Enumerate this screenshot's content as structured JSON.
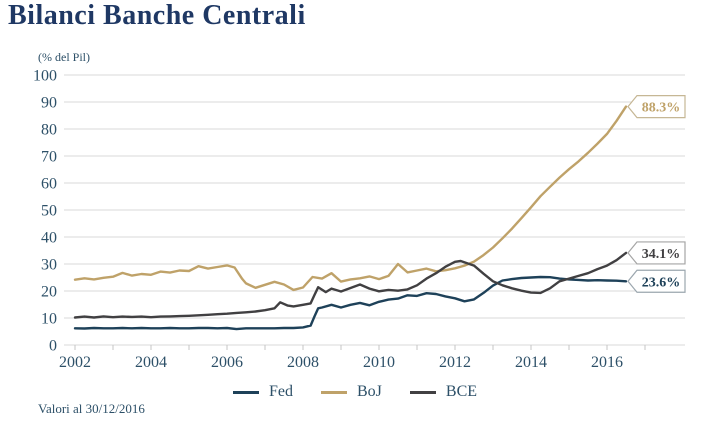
{
  "colors": {
    "background": "#ffffff",
    "title": "#1f3864",
    "axis_text": "#2d5068",
    "gridline": "#d9d9d9",
    "tick": "#c4c4c4",
    "fed": "#1e4159",
    "boj": "#bfa269",
    "bce": "#414042"
  },
  "header": {
    "title": "Bilanci Banche Centrali"
  },
  "chart_data": {
    "type": "line",
    "title": "Bilanci Banche Centrali",
    "unit_label": "(% del Pil)",
    "footnote": "Valori al 30/12/2016",
    "grid": "horizontal-only",
    "legend_position": "bottom-center",
    "x_axis": {
      "tick_labels": [
        2002,
        2004,
        2006,
        2008,
        2010,
        2012,
        2014,
        2016
      ],
      "minor_tick_years": [
        2002,
        2003,
        2004,
        2005,
        2006,
        2007,
        2008,
        2009,
        2010,
        2011,
        2012,
        2013,
        2014,
        2015,
        2016,
        2017
      ],
      "range": [
        2002,
        2016.5
      ]
    },
    "y_axis": {
      "ticks": [
        0,
        10,
        20,
        30,
        40,
        50,
        60,
        70,
        80,
        90,
        100
      ],
      "range": [
        0,
        100
      ]
    },
    "series": [
      {
        "name": "Fed",
        "color_key": "fed",
        "end_label": "23.6%",
        "callout_border": "#9ba6ae",
        "points": [
          [
            2002.0,
            6.2
          ],
          [
            2002.25,
            6.1
          ],
          [
            2002.5,
            6.3
          ],
          [
            2002.75,
            6.2
          ],
          [
            2003.0,
            6.2
          ],
          [
            2003.25,
            6.3
          ],
          [
            2003.5,
            6.2
          ],
          [
            2003.75,
            6.3
          ],
          [
            2004.0,
            6.2
          ],
          [
            2004.25,
            6.2
          ],
          [
            2004.5,
            6.3
          ],
          [
            2004.75,
            6.2
          ],
          [
            2005.0,
            6.2
          ],
          [
            2005.25,
            6.3
          ],
          [
            2005.5,
            6.3
          ],
          [
            2005.75,
            6.2
          ],
          [
            2006.0,
            6.3
          ],
          [
            2006.25,
            5.9
          ],
          [
            2006.5,
            6.2
          ],
          [
            2006.75,
            6.2
          ],
          [
            2007.0,
            6.2
          ],
          [
            2007.25,
            6.2
          ],
          [
            2007.5,
            6.3
          ],
          [
            2007.75,
            6.3
          ],
          [
            2008.0,
            6.5
          ],
          [
            2008.2,
            7.2
          ],
          [
            2008.3,
            10.5
          ],
          [
            2008.4,
            13.6
          ],
          [
            2008.5,
            13.9
          ],
          [
            2008.75,
            14.9
          ],
          [
            2009.0,
            13.9
          ],
          [
            2009.25,
            14.9
          ],
          [
            2009.5,
            15.6
          ],
          [
            2009.75,
            14.7
          ],
          [
            2010.0,
            16.0
          ],
          [
            2010.25,
            16.8
          ],
          [
            2010.5,
            17.2
          ],
          [
            2010.75,
            18.4
          ],
          [
            2011.0,
            18.2
          ],
          [
            2011.25,
            19.2
          ],
          [
            2011.5,
            18.9
          ],
          [
            2011.75,
            18.0
          ],
          [
            2012.0,
            17.3
          ],
          [
            2012.25,
            16.2
          ],
          [
            2012.5,
            16.9
          ],
          [
            2012.75,
            19.3
          ],
          [
            2013.0,
            22.0
          ],
          [
            2013.25,
            23.9
          ],
          [
            2013.5,
            24.4
          ],
          [
            2013.75,
            24.8
          ],
          [
            2014.0,
            25.0
          ],
          [
            2014.25,
            25.2
          ],
          [
            2014.5,
            25.1
          ],
          [
            2014.75,
            24.6
          ],
          [
            2015.0,
            24.3
          ],
          [
            2015.25,
            24.1
          ],
          [
            2015.5,
            23.9
          ],
          [
            2015.75,
            24.0
          ],
          [
            2016.0,
            23.9
          ],
          [
            2016.25,
            23.8
          ],
          [
            2016.5,
            23.6
          ]
        ]
      },
      {
        "name": "BoJ",
        "color_key": "boj",
        "end_label": "88.3%",
        "callout_border": "#c6b795",
        "points": [
          [
            2002.0,
            24.2
          ],
          [
            2002.25,
            24.7
          ],
          [
            2002.5,
            24.3
          ],
          [
            2002.75,
            24.9
          ],
          [
            2003.0,
            25.3
          ],
          [
            2003.25,
            26.7
          ],
          [
            2003.5,
            25.7
          ],
          [
            2003.75,
            26.3
          ],
          [
            2004.0,
            26.0
          ],
          [
            2004.25,
            27.2
          ],
          [
            2004.5,
            26.8
          ],
          [
            2004.75,
            27.6
          ],
          [
            2005.0,
            27.4
          ],
          [
            2005.25,
            29.2
          ],
          [
            2005.5,
            28.3
          ],
          [
            2005.75,
            28.9
          ],
          [
            2006.0,
            29.5
          ],
          [
            2006.2,
            28.7
          ],
          [
            2006.4,
            24.5
          ],
          [
            2006.5,
            22.8
          ],
          [
            2006.75,
            21.2
          ],
          [
            2007.0,
            22.3
          ],
          [
            2007.25,
            23.4
          ],
          [
            2007.5,
            22.4
          ],
          [
            2007.75,
            20.4
          ],
          [
            2008.0,
            21.3
          ],
          [
            2008.25,
            25.2
          ],
          [
            2008.5,
            24.6
          ],
          [
            2008.75,
            26.6
          ],
          [
            2009.0,
            23.5
          ],
          [
            2009.25,
            24.3
          ],
          [
            2009.5,
            24.7
          ],
          [
            2009.75,
            25.4
          ],
          [
            2010.0,
            24.4
          ],
          [
            2010.25,
            25.6
          ],
          [
            2010.5,
            30.0
          ],
          [
            2010.75,
            26.9
          ],
          [
            2011.0,
            27.6
          ],
          [
            2011.25,
            28.3
          ],
          [
            2011.5,
            27.3
          ],
          [
            2011.75,
            27.7
          ],
          [
            2012.0,
            28.4
          ],
          [
            2012.25,
            29.4
          ],
          [
            2012.5,
            30.9
          ],
          [
            2012.75,
            33.3
          ],
          [
            2013.0,
            36.1
          ],
          [
            2013.25,
            39.5
          ],
          [
            2013.5,
            43.1
          ],
          [
            2013.75,
            47.0
          ],
          [
            2014.0,
            51.0
          ],
          [
            2014.25,
            55.1
          ],
          [
            2014.5,
            58.6
          ],
          [
            2014.75,
            62.0
          ],
          [
            2015.0,
            65.1
          ],
          [
            2015.25,
            68.0
          ],
          [
            2015.5,
            71.2
          ],
          [
            2015.75,
            74.6
          ],
          [
            2016.0,
            78.2
          ],
          [
            2016.25,
            83.0
          ],
          [
            2016.5,
            88.3
          ]
        ]
      },
      {
        "name": "BCE",
        "color_key": "bce",
        "end_label": "34.1%",
        "callout_border": "#a5a5a5",
        "points": [
          [
            2002.0,
            10.2
          ],
          [
            2002.25,
            10.5
          ],
          [
            2002.5,
            10.2
          ],
          [
            2002.75,
            10.6
          ],
          [
            2003.0,
            10.3
          ],
          [
            2003.25,
            10.5
          ],
          [
            2003.5,
            10.4
          ],
          [
            2003.75,
            10.5
          ],
          [
            2004.0,
            10.3
          ],
          [
            2004.25,
            10.5
          ],
          [
            2004.5,
            10.6
          ],
          [
            2004.75,
            10.7
          ],
          [
            2005.0,
            10.8
          ],
          [
            2005.25,
            11.0
          ],
          [
            2005.5,
            11.2
          ],
          [
            2005.75,
            11.4
          ],
          [
            2006.0,
            11.6
          ],
          [
            2006.25,
            11.9
          ],
          [
            2006.5,
            12.1
          ],
          [
            2006.75,
            12.4
          ],
          [
            2007.0,
            12.9
          ],
          [
            2007.25,
            13.6
          ],
          [
            2007.4,
            15.8
          ],
          [
            2007.6,
            14.6
          ],
          [
            2007.75,
            14.3
          ],
          [
            2008.0,
            14.9
          ],
          [
            2008.2,
            15.4
          ],
          [
            2008.3,
            18.5
          ],
          [
            2008.4,
            21.4
          ],
          [
            2008.6,
            19.6
          ],
          [
            2008.75,
            20.9
          ],
          [
            2009.0,
            19.8
          ],
          [
            2009.25,
            21.1
          ],
          [
            2009.5,
            22.4
          ],
          [
            2009.75,
            20.9
          ],
          [
            2010.0,
            19.9
          ],
          [
            2010.25,
            20.4
          ],
          [
            2010.5,
            20.1
          ],
          [
            2010.75,
            20.6
          ],
          [
            2011.0,
            22.1
          ],
          [
            2011.25,
            24.6
          ],
          [
            2011.5,
            26.6
          ],
          [
            2011.75,
            29.0
          ],
          [
            2012.0,
            30.8
          ],
          [
            2012.15,
            31.1
          ],
          [
            2012.5,
            29.4
          ],
          [
            2012.75,
            26.4
          ],
          [
            2013.0,
            23.6
          ],
          [
            2013.25,
            22.1
          ],
          [
            2013.5,
            21.0
          ],
          [
            2013.75,
            20.1
          ],
          [
            2014.0,
            19.4
          ],
          [
            2014.25,
            19.3
          ],
          [
            2014.5,
            21.0
          ],
          [
            2014.75,
            23.6
          ],
          [
            2015.0,
            24.6
          ],
          [
            2015.25,
            25.6
          ],
          [
            2015.5,
            26.6
          ],
          [
            2015.75,
            28.1
          ],
          [
            2016.0,
            29.4
          ],
          [
            2016.25,
            31.4
          ],
          [
            2016.5,
            34.1
          ]
        ]
      }
    ]
  }
}
